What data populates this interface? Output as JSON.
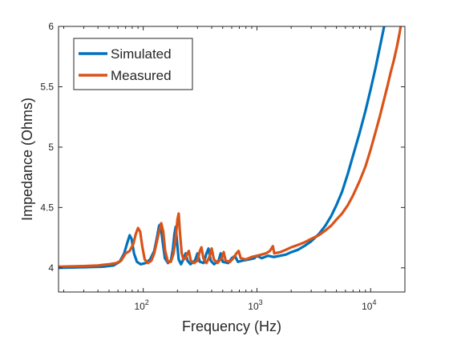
{
  "chart_data": {
    "type": "line",
    "xlabel": "Frequency (Hz)",
    "ylabel": "Impedance (Ohms)",
    "xscale": "log",
    "xlim": [
      18,
      20000
    ],
    "ylim": [
      3.8,
      6
    ],
    "grid": false,
    "legend_position": "top-left",
    "x_ticks": [
      {
        "value": 100,
        "label": "10",
        "exp": "2"
      },
      {
        "value": 1000,
        "label": "10",
        "exp": "3"
      },
      {
        "value": 10000,
        "label": "10",
        "exp": "4"
      }
    ],
    "y_ticks": [
      {
        "value": 4,
        "label": "4"
      },
      {
        "value": 4.5,
        "label": "4.5"
      },
      {
        "value": 5,
        "label": "5"
      },
      {
        "value": 5.5,
        "label": "5.5"
      },
      {
        "value": 6,
        "label": "6"
      }
    ],
    "series": [
      {
        "name": "Simulated",
        "color": "#0072BD",
        "points": [
          [
            18,
            4.0
          ],
          [
            30,
            4.005
          ],
          [
            45,
            4.01
          ],
          [
            55,
            4.02
          ],
          [
            62,
            4.05
          ],
          [
            68,
            4.12
          ],
          [
            72,
            4.2
          ],
          [
            76,
            4.27
          ],
          [
            79,
            4.24
          ],
          [
            83,
            4.12
          ],
          [
            88,
            4.05
          ],
          [
            95,
            4.03
          ],
          [
            105,
            4.04
          ],
          [
            115,
            4.07
          ],
          [
            125,
            4.14
          ],
          [
            132,
            4.25
          ],
          [
            138,
            4.35
          ],
          [
            142,
            4.36
          ],
          [
            148,
            4.22
          ],
          [
            155,
            4.08
          ],
          [
            165,
            4.04
          ],
          [
            175,
            4.06
          ],
          [
            182,
            4.15
          ],
          [
            188,
            4.28
          ],
          [
            193,
            4.34
          ],
          [
            198,
            4.22
          ],
          [
            205,
            4.07
          ],
          [
            215,
            4.03
          ],
          [
            228,
            4.08
          ],
          [
            236,
            4.12
          ],
          [
            245,
            4.06
          ],
          [
            260,
            4.03
          ],
          [
            285,
            4.06
          ],
          [
            300,
            4.12
          ],
          [
            315,
            4.05
          ],
          [
            340,
            4.04
          ],
          [
            360,
            4.12
          ],
          [
            375,
            4.16
          ],
          [
            392,
            4.06
          ],
          [
            420,
            4.03
          ],
          [
            460,
            4.06
          ],
          [
            480,
            4.12
          ],
          [
            500,
            4.05
          ],
          [
            560,
            4.04
          ],
          [
            600,
            4.08
          ],
          [
            640,
            4.1
          ],
          [
            680,
            4.05
          ],
          [
            750,
            4.06
          ],
          [
            850,
            4.07
          ],
          [
            950,
            4.08
          ],
          [
            1000,
            4.1
          ],
          [
            1100,
            4.08
          ],
          [
            1250,
            4.1
          ],
          [
            1400,
            4.09
          ],
          [
            1600,
            4.1
          ],
          [
            1800,
            4.11
          ],
          [
            2000,
            4.13
          ],
          [
            2300,
            4.15
          ],
          [
            2600,
            4.18
          ],
          [
            3000,
            4.22
          ],
          [
            3500,
            4.28
          ],
          [
            4000,
            4.35
          ],
          [
            4500,
            4.43
          ],
          [
            5000,
            4.52
          ],
          [
            5600,
            4.63
          ],
          [
            6300,
            4.78
          ],
          [
            7000,
            4.93
          ],
          [
            8000,
            5.12
          ],
          [
            9000,
            5.3
          ],
          [
            10000,
            5.48
          ],
          [
            11000,
            5.65
          ],
          [
            12000,
            5.82
          ],
          [
            13000,
            5.98
          ],
          [
            13500,
            6.05
          ]
        ]
      },
      {
        "name": "Measured",
        "color": "#D95319",
        "points": [
          [
            18,
            4.01
          ],
          [
            30,
            4.015
          ],
          [
            40,
            4.02
          ],
          [
            50,
            4.03
          ],
          [
            58,
            4.04
          ],
          [
            64,
            4.06
          ],
          [
            70,
            4.12
          ],
          [
            76,
            4.14
          ],
          [
            82,
            4.2
          ],
          [
            86,
            4.28
          ],
          [
            90,
            4.33
          ],
          [
            94,
            4.3
          ],
          [
            98,
            4.18
          ],
          [
            103,
            4.07
          ],
          [
            110,
            4.04
          ],
          [
            118,
            4.06
          ],
          [
            125,
            4.12
          ],
          [
            132,
            4.22
          ],
          [
            138,
            4.3
          ],
          [
            144,
            4.37
          ],
          [
            150,
            4.3
          ],
          [
            156,
            4.14
          ],
          [
            165,
            4.05
          ],
          [
            175,
            4.05
          ],
          [
            185,
            4.12
          ],
          [
            193,
            4.25
          ],
          [
            200,
            4.4
          ],
          [
            205,
            4.45
          ],
          [
            210,
            4.3
          ],
          [
            218,
            4.12
          ],
          [
            226,
            4.07
          ],
          [
            236,
            4.08
          ],
          [
            245,
            4.12
          ],
          [
            252,
            4.14
          ],
          [
            262,
            4.06
          ],
          [
            280,
            4.04
          ],
          [
            300,
            4.06
          ],
          [
            315,
            4.14
          ],
          [
            325,
            4.17
          ],
          [
            338,
            4.08
          ],
          [
            360,
            4.04
          ],
          [
            385,
            4.1
          ],
          [
            400,
            4.16
          ],
          [
            418,
            4.07
          ],
          [
            450,
            4.04
          ],
          [
            490,
            4.08
          ],
          [
            510,
            4.13
          ],
          [
            530,
            4.06
          ],
          [
            580,
            4.05
          ],
          [
            620,
            4.08
          ],
          [
            660,
            4.12
          ],
          [
            690,
            4.14
          ],
          [
            720,
            4.08
          ],
          [
            800,
            4.07
          ],
          [
            900,
            4.09
          ],
          [
            1000,
            4.1
          ],
          [
            1100,
            4.11
          ],
          [
            1200,
            4.12
          ],
          [
            1300,
            4.14
          ],
          [
            1380,
            4.18
          ],
          [
            1420,
            4.12
          ],
          [
            1600,
            4.13
          ],
          [
            1800,
            4.15
          ],
          [
            2000,
            4.17
          ],
          [
            2300,
            4.19
          ],
          [
            2600,
            4.21
          ],
          [
            3000,
            4.24
          ],
          [
            3500,
            4.27
          ],
          [
            4000,
            4.31
          ],
          [
            4500,
            4.35
          ],
          [
            5000,
            4.4
          ],
          [
            5600,
            4.45
          ],
          [
            6300,
            4.52
          ],
          [
            7000,
            4.6
          ],
          [
            8000,
            4.72
          ],
          [
            9000,
            4.84
          ],
          [
            10000,
            4.98
          ],
          [
            11000,
            5.12
          ],
          [
            12000,
            5.25
          ],
          [
            13000,
            5.38
          ],
          [
            14000,
            5.5
          ],
          [
            15000,
            5.62
          ],
          [
            16000,
            5.72
          ],
          [
            17000,
            5.83
          ],
          [
            18000,
            5.95
          ],
          [
            18500,
            6.02
          ]
        ]
      }
    ]
  }
}
